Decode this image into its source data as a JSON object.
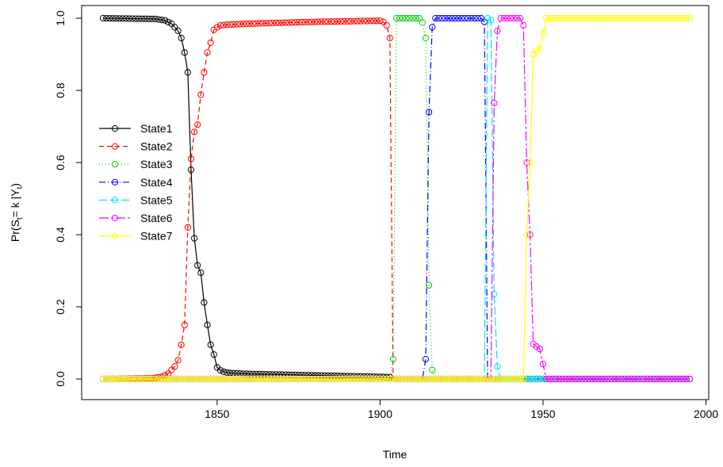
{
  "chart_data": {
    "type": "line",
    "xlabel": "Time",
    "ylabel": {
      "main": "Pr(S",
      "sub1": "t",
      "mid": "= k |Y",
      "sub2": "t",
      "end": ")"
    },
    "xlim": [
      1815,
      1995
    ],
    "ylim": [
      0,
      1
    ],
    "x_ticks": [
      1850,
      1900,
      1950,
      2000
    ],
    "y_ticks": [
      0.0,
      0.2,
      0.4,
      0.6,
      0.8,
      1.0
    ],
    "x_tick_labels": [
      "1850",
      "1900",
      "1950",
      "2000"
    ],
    "y_tick_labels": [
      "0.0",
      "0.2",
      "0.4",
      "0.6",
      "0.8",
      "1.0"
    ],
    "grid": false,
    "legend_position": "left",
    "x_start": 1815,
    "x_end": 1995,
    "series": [
      {
        "name": "State1",
        "color": "#000000",
        "dash": "",
        "keys": [
          [
            1815,
            1.0
          ],
          [
            1831,
            0.998
          ],
          [
            1834,
            0.994
          ],
          [
            1836,
            0.985
          ],
          [
            1837,
            0.975
          ],
          [
            1838,
            0.965
          ],
          [
            1839,
            0.945
          ],
          [
            1840,
            0.905
          ],
          [
            1841,
            0.85
          ],
          [
            1842,
            0.58
          ],
          [
            1843,
            0.39
          ],
          [
            1844,
            0.315
          ],
          [
            1845,
            0.295
          ],
          [
            1846,
            0.212
          ],
          [
            1847,
            0.15
          ],
          [
            1848,
            0.095
          ],
          [
            1849,
            0.068
          ],
          [
            1850,
            0.032
          ],
          [
            1851,
            0.024
          ],
          [
            1852,
            0.02
          ],
          [
            1853,
            0.018
          ],
          [
            1855,
            0.016
          ],
          [
            1860,
            0.014
          ],
          [
            1870,
            0.012
          ],
          [
            1880,
            0.01
          ],
          [
            1890,
            0.008
          ],
          [
            1900,
            0.006
          ],
          [
            1903,
            0.005
          ],
          [
            1904,
            0.0
          ],
          [
            1995,
            0.0
          ]
        ]
      },
      {
        "name": "State2",
        "color": "#ff0000",
        "dash": "6,4",
        "keys": [
          [
            1815,
            0.0
          ],
          [
            1830,
            0.002
          ],
          [
            1833,
            0.006
          ],
          [
            1835,
            0.015
          ],
          [
            1836,
            0.025
          ],
          [
            1837,
            0.035
          ],
          [
            1838,
            0.052
          ],
          [
            1839,
            0.095
          ],
          [
            1840,
            0.15
          ],
          [
            1841,
            0.42
          ],
          [
            1842,
            0.61
          ],
          [
            1843,
            0.685
          ],
          [
            1844,
            0.705
          ],
          [
            1845,
            0.788
          ],
          [
            1846,
            0.85
          ],
          [
            1847,
            0.905
          ],
          [
            1848,
            0.932
          ],
          [
            1849,
            0.968
          ],
          [
            1850,
            0.975
          ],
          [
            1851,
            0.98
          ],
          [
            1853,
            0.982
          ],
          [
            1860,
            0.985
          ],
          [
            1880,
            0.99
          ],
          [
            1900,
            0.993
          ],
          [
            1901,
            0.99
          ],
          [
            1902,
            0.98
          ],
          [
            1903,
            0.945
          ],
          [
            1904,
            0.0
          ],
          [
            1995,
            0.0
          ]
        ]
      },
      {
        "name": "State3",
        "color": "#00cd00",
        "dash": "1,3",
        "keys": [
          [
            1815,
            0.0
          ],
          [
            1903,
            0.0
          ],
          [
            1903.5,
            0.01
          ],
          [
            1904,
            0.055
          ],
          [
            1905,
            1.0
          ],
          [
            1912,
            1.0
          ],
          [
            1913,
            0.988
          ],
          [
            1914,
            0.945
          ],
          [
            1915,
            0.26
          ],
          [
            1916,
            0.025
          ],
          [
            1917,
            0.0
          ],
          [
            1995,
            0.0
          ]
        ]
      },
      {
        "name": "State4",
        "color": "#0000ff",
        "dash": "8,3,1,3",
        "keys": [
          [
            1815,
            0.0
          ],
          [
            1913,
            0.0
          ],
          [
            1913.5,
            0.013
          ],
          [
            1914,
            0.055
          ],
          [
            1915,
            0.74
          ],
          [
            1916,
            0.975
          ],
          [
            1917,
            1.0
          ],
          [
            1931,
            1.0
          ],
          [
            1932,
            0.99
          ],
          [
            1933,
            0.0
          ],
          [
            1995,
            0.0
          ]
        ]
      },
      {
        "name": "State5",
        "color": "#00e5ee",
        "dash": "10,4",
        "keys": [
          [
            1815,
            0.0
          ],
          [
            1932,
            0.0
          ],
          [
            1933,
            1.0
          ],
          [
            1934,
            0.995
          ],
          [
            1935,
            0.235
          ],
          [
            1936,
            0.035
          ],
          [
            1937,
            0.0
          ],
          [
            1995,
            0.0
          ]
        ]
      },
      {
        "name": "State6",
        "color": "#ff00ff",
        "dash": "12,3,3,3",
        "keys": [
          [
            1815,
            0.0
          ],
          [
            1934,
            0.0
          ],
          [
            1934.5,
            0.01
          ],
          [
            1935,
            0.765
          ],
          [
            1936,
            0.965
          ],
          [
            1937,
            1.0
          ],
          [
            1943,
            1.0
          ],
          [
            1944,
            0.98
          ],
          [
            1945,
            0.6
          ],
          [
            1946,
            0.4
          ],
          [
            1947,
            0.097
          ],
          [
            1948,
            0.09
          ],
          [
            1949,
            0.083
          ],
          [
            1951,
            0.0
          ],
          [
            1995,
            0.0
          ]
        ]
      },
      {
        "name": "State7",
        "color": "#ffff00",
        "dash": "",
        "keys": [
          [
            1815,
            0.0
          ],
          [
            1944,
            0.0
          ],
          [
            1944.5,
            0.02
          ],
          [
            1945,
            0.4
          ],
          [
            1946,
            0.6
          ],
          [
            1947,
            0.9
          ],
          [
            1948,
            0.91
          ],
          [
            1949,
            0.915
          ],
          [
            1951,
            1.0
          ],
          [
            1995,
            1.0
          ]
        ]
      }
    ]
  }
}
